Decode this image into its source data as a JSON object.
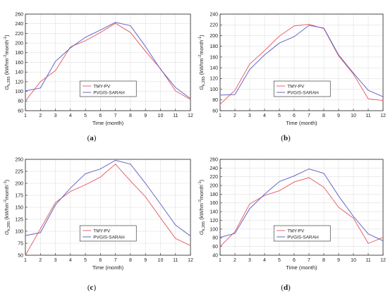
{
  "colors": {
    "tmy": "#e8646b",
    "pvgis": "#6566c4",
    "axis": "#222222",
    "grid": "#d9d9d9"
  },
  "chart_data": [
    {
      "type": "line",
      "panel_label": "(a)",
      "xlabel": "Time (month)",
      "ylabel": "G",
      "ylabel_sub": "k,285",
      "ylabel_rest": " (kWhm",
      "ylabel_sup1": "-2",
      "ylabel_mid": "month",
      "ylabel_sup2": "-1",
      "ylabel_end": ")",
      "x": [
        1,
        2,
        3,
        4,
        5,
        6,
        7,
        8,
        9,
        10,
        11,
        12
      ],
      "xlim": [
        1,
        12
      ],
      "ylim": [
        60,
        260
      ],
      "yticks": [
        60,
        80,
        100,
        120,
        140,
        160,
        180,
        200,
        220,
        240,
        260
      ],
      "grid": true,
      "legend": "bottom-center",
      "series": [
        {
          "name": "TMY-PV",
          "color_key": "tmy",
          "values": [
            80,
            120,
            143,
            192,
            205,
            222,
            241,
            222,
            183,
            147,
            101,
            83
          ]
        },
        {
          "name": "PVGIS-SARAH",
          "color_key": "pvgis",
          "values": [
            101,
            107,
            162,
            190,
            212,
            227,
            243,
            236,
            193,
            146,
            108,
            85
          ]
        }
      ]
    },
    {
      "type": "line",
      "panel_label": "(b)",
      "xlabel": "Time (month)",
      "ylabel": "G",
      "ylabel_sub": "k,285",
      "ylabel_rest": " (kWhm",
      "ylabel_sup1": "-2",
      "ylabel_mid": "month",
      "ylabel_sup2": "-1",
      "ylabel_end": ")",
      "x": [
        1,
        2,
        3,
        4,
        5,
        6,
        7,
        8,
        9,
        10,
        11,
        12
      ],
      "xlim": [
        1,
        12
      ],
      "ylim": [
        60,
        240
      ],
      "yticks": [
        60,
        80,
        100,
        120,
        140,
        160,
        180,
        200,
        220,
        240
      ],
      "grid": true,
      "legend": "bottom-center",
      "series": [
        {
          "name": "TMY-PV",
          "color_key": "tmy",
          "values": [
            72,
            98,
            147,
            172,
            199,
            218,
            221,
            213,
            162,
            128,
            82,
            79
          ]
        },
        {
          "name": "PVGIS-SARAH",
          "color_key": "pvgis",
          "values": [
            89,
            90,
            137,
            164,
            186,
            198,
            219,
            214,
            164,
            130,
            98,
            86
          ]
        }
      ]
    },
    {
      "type": "line",
      "panel_label": "(c)",
      "xlabel": "Time (month)",
      "ylabel": "G",
      "ylabel_sub": "k,285",
      "ylabel_rest": " (kWhm",
      "ylabel_sup1": "-2",
      "ylabel_mid": "month",
      "ylabel_sup2": "-1",
      "ylabel_end": ")",
      "x": [
        1,
        2,
        3,
        4,
        5,
        6,
        7,
        8,
        9,
        10,
        11,
        12
      ],
      "xlim": [
        1,
        12
      ],
      "ylim": [
        50,
        250
      ],
      "yticks": [
        50,
        75,
        100,
        125,
        150,
        175,
        200,
        225,
        250
      ],
      "grid": true,
      "legend": "bottom-center",
      "series": [
        {
          "name": "TMY-PV",
          "color_key": "tmy",
          "values": [
            50,
            105,
            160,
            183,
            197,
            213,
            240,
            205,
            172,
            128,
            85,
            70
          ]
        },
        {
          "name": "PVGIS-SARAH",
          "color_key": "pvgis",
          "values": [
            91,
            97,
            155,
            190,
            220,
            230,
            248,
            240,
            200,
            157,
            113,
            90
          ]
        }
      ]
    },
    {
      "type": "line",
      "panel_label": "(d)",
      "xlabel": "Time (month)",
      "ylabel": "G",
      "ylabel_sub": "k,285",
      "ylabel_rest": " (kWhm",
      "ylabel_sup1": "-2",
      "ylabel_mid": "month",
      "ylabel_sup2": "-1",
      "ylabel_end": ")",
      "x": [
        1,
        2,
        3,
        4,
        5,
        6,
        7,
        8,
        9,
        10,
        11,
        12
      ],
      "xlim": [
        1,
        12
      ],
      "ylim": [
        40,
        260
      ],
      "yticks": [
        40,
        60,
        80,
        100,
        120,
        140,
        160,
        180,
        200,
        220,
        240,
        260
      ],
      "grid": true,
      "legend": "bottom-center",
      "series": [
        {
          "name": "TMY-PV",
          "color_key": "tmy",
          "values": [
            60,
            94,
            158,
            177,
            188,
            208,
            218,
            196,
            150,
            125,
            67,
            81
          ]
        },
        {
          "name": "PVGIS-SARAH",
          "color_key": "pvgis",
          "values": [
            81,
            90,
            147,
            180,
            209,
            222,
            238,
            228,
            176,
            129,
            89,
            73
          ]
        }
      ]
    }
  ]
}
